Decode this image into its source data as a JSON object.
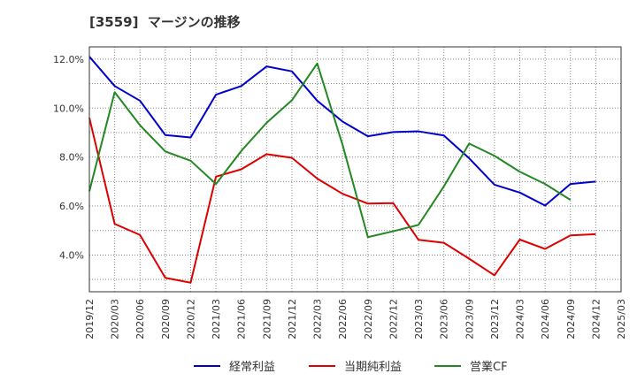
{
  "chart_data": {
    "type": "line",
    "title": "[3559]  マージンの推移",
    "xlabel": "",
    "ylabel": "",
    "x": [
      "2019/12",
      "2020/03",
      "2020/06",
      "2020/09",
      "2020/12",
      "2021/03",
      "2021/06",
      "2021/09",
      "2021/12",
      "2022/03",
      "2022/06",
      "2022/09",
      "2022/12",
      "2023/03",
      "2023/06",
      "2023/09",
      "2023/12",
      "2024/03",
      "2024/06",
      "2024/09",
      "2024/12",
      "2025/03"
    ],
    "ylim": [
      2.5,
      12.5
    ],
    "yticks": [
      4.0,
      6.0,
      8.0,
      10.0,
      12.0
    ],
    "ytick_labels": [
      "4.0%",
      "6.0%",
      "8.0%",
      "10.0%",
      "12.0%"
    ],
    "grid": true,
    "legend_position": "bottom",
    "series": [
      {
        "name": "経常利益",
        "color": "#0000cc",
        "values": [
          12.1,
          10.9,
          10.3,
          8.9,
          8.8,
          10.55,
          10.9,
          11.7,
          11.5,
          10.3,
          9.45,
          8.85,
          9.02,
          9.05,
          8.88,
          7.95,
          6.87,
          6.55,
          6.02,
          6.9,
          7.0,
          null
        ]
      },
      {
        "name": "当期純利益",
        "color": "#dd0000",
        "values": [
          9.6,
          5.27,
          4.82,
          3.07,
          2.87,
          7.2,
          7.5,
          8.12,
          7.97,
          7.12,
          6.5,
          6.1,
          6.12,
          4.62,
          4.5,
          3.85,
          3.17,
          4.63,
          4.25,
          4.8,
          4.85,
          null
        ]
      },
      {
        "name": "営業CF",
        "color": "#228822",
        "values": [
          6.6,
          10.65,
          9.3,
          8.23,
          7.85,
          6.9,
          8.25,
          9.4,
          10.32,
          11.82,
          8.5,
          4.73,
          4.97,
          5.23,
          6.8,
          8.55,
          8.05,
          7.4,
          6.9,
          6.25,
          null,
          null
        ]
      }
    ]
  }
}
